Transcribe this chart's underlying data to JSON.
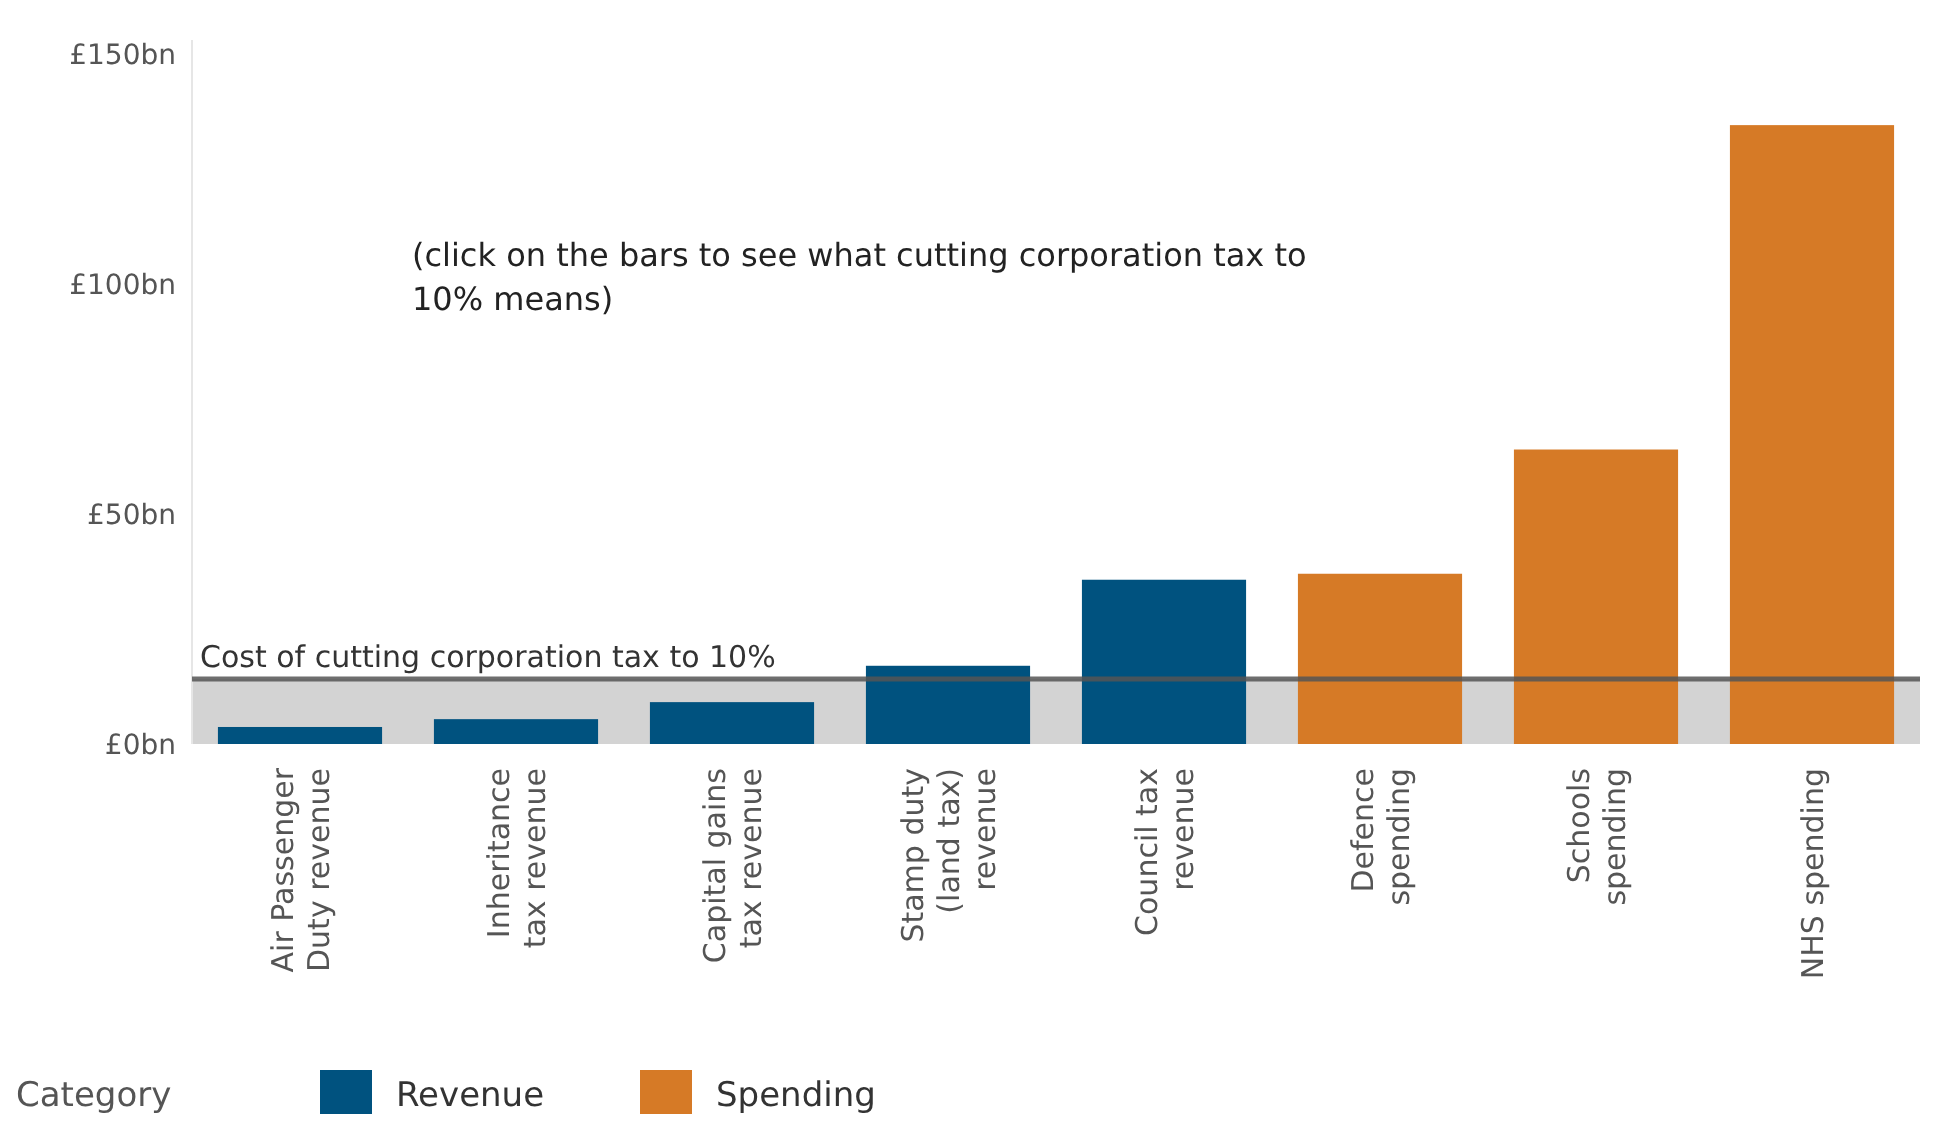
{
  "chart_data": {
    "type": "bar",
    "categories": [
      "Air Passenger Duty revenue",
      "Inheritance tax revenue",
      "Capital gains tax revenue",
      "Stamp duty (land tax) revenue",
      "Council tax revenue",
      "Defence spending",
      "Schools spending",
      "NHS spending"
    ],
    "series": [
      {
        "name": "Revenue",
        "color": "#00527f",
        "values": [
          3.7,
          5.4,
          9.1,
          17,
          35.7,
          null,
          null,
          null
        ]
      },
      {
        "name": "Spending",
        "color": "#d67a26",
        "values": [
          null,
          null,
          null,
          null,
          null,
          37,
          64,
          134.5
        ]
      }
    ],
    "ylim": [
      0,
      153
    ],
    "yticks": [
      {
        "value": 0,
        "label": "£0bn"
      },
      {
        "value": 50,
        "label": "£50bn"
      },
      {
        "value": 100,
        "label": "£100bn"
      },
      {
        "value": 150,
        "label": "£150bn"
      }
    ],
    "grid": false,
    "legend": "bottom",
    "legend_title": "Category",
    "ref_lines": [
      {
        "axis": "y",
        "value": 14.1,
        "label": "Cost of cutting corporation tax to 10%",
        "color": "#555555"
      }
    ],
    "bands": [
      {
        "axis": "y",
        "from": 0,
        "to": 14.1,
        "color": "#d3d3d3"
      }
    ],
    "annotations": [
      "(click on the bars to see what cutting corporation tax to 10% means)"
    ]
  }
}
